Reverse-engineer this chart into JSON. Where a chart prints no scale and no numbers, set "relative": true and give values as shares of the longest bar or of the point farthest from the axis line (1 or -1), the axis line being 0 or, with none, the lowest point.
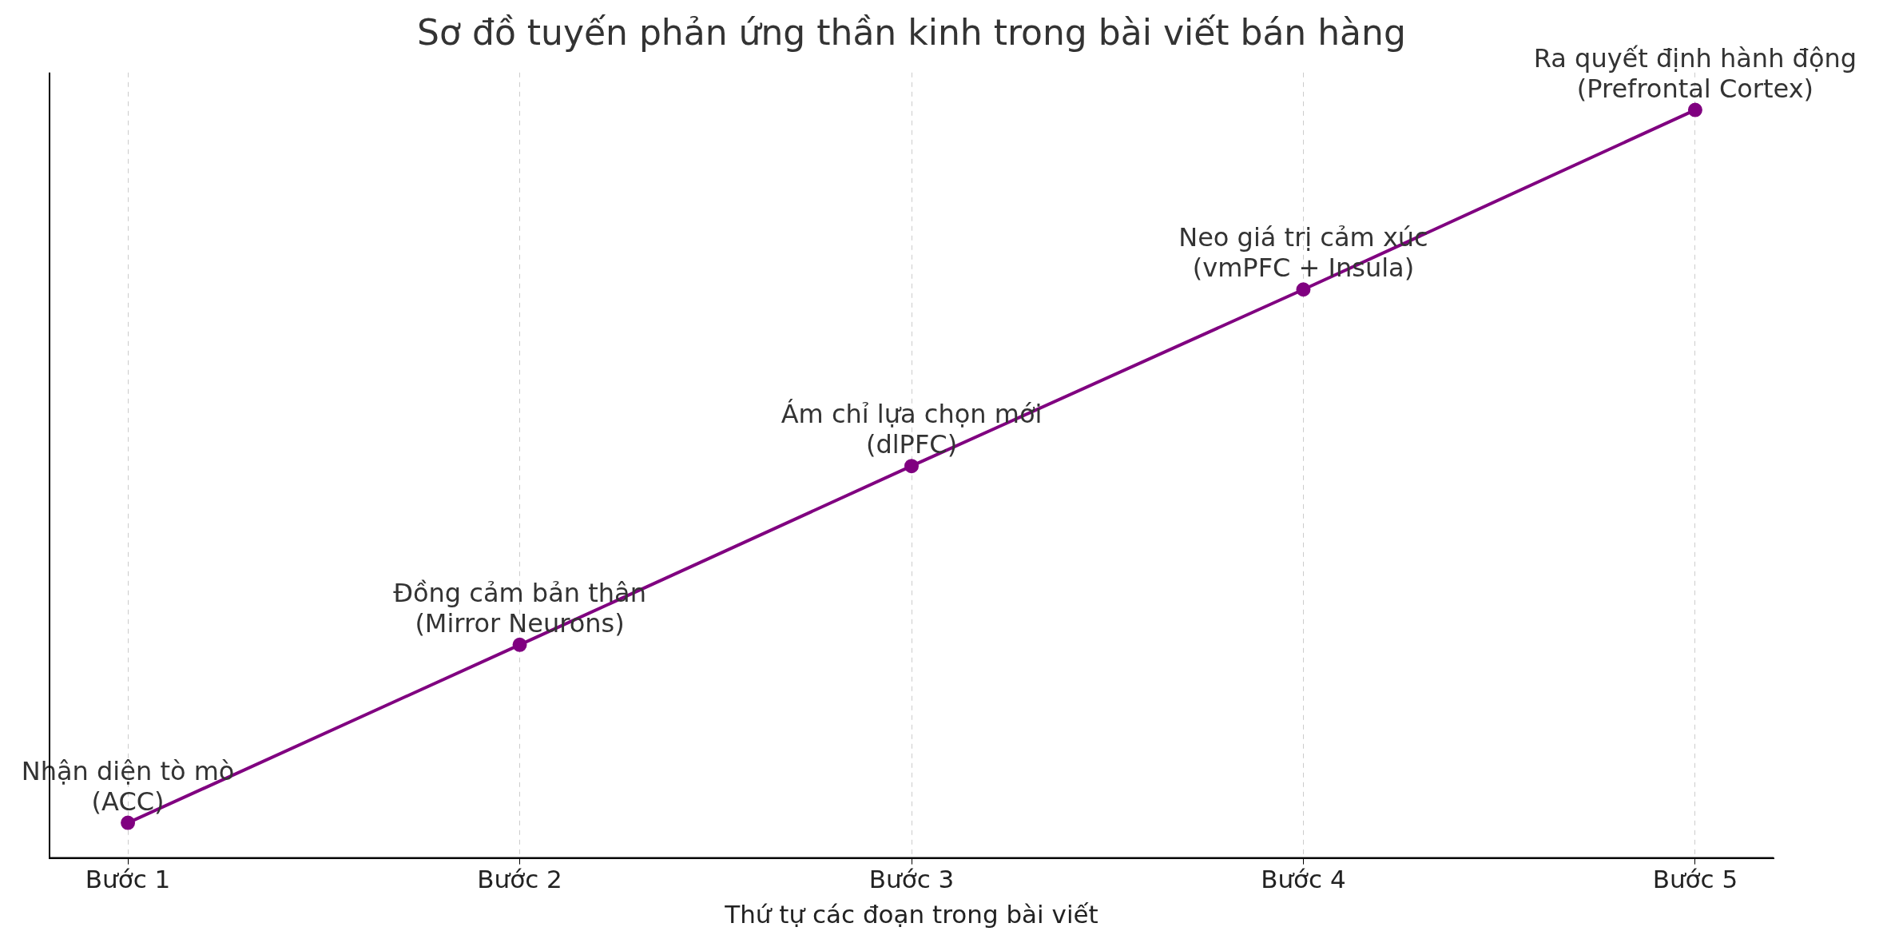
{
  "chart_data": {
    "type": "line",
    "title": "Sơ đồ tuyến phản ứng thần kinh trong bài viết bán hàng",
    "xlabel": "Thứ tự các đoạn trong bài viết",
    "categories": [
      "Bước 1",
      "Bước 2",
      "Bước 3",
      "Bước 4",
      "Bước 5"
    ],
    "relative": true,
    "series": [
      {
        "color": "#800080",
        "values": [
          0.047,
          0.285,
          0.524,
          0.76,
          1
        ]
      }
    ],
    "annotations": [
      {
        "text": "Nhận diện tò mò\n(ACC)",
        "x": "Bước 1",
        "y": 0.047
      },
      {
        "text": "Đồng cảm bản thân\n(Mirror Neurons)",
        "x": "Bước 2",
        "y": 0.285
      },
      {
        "text": "Ám chỉ lựa chọn mới\n(dlPFC)",
        "x": "Bước 3",
        "y": 0.524
      },
      {
        "text": "Neo giá trị cảm xúc\n(vmPFC + Insula)",
        "x": "Bước 4",
        "y": 0.76
      },
      {
        "text": "Ra quyết định hành động\n(Prefrontal Cortex)",
        "x": "Bước 5",
        "y": 1
      }
    ],
    "grid": "x",
    "marker": "circle",
    "line_style": "solid",
    "legend": false
  }
}
